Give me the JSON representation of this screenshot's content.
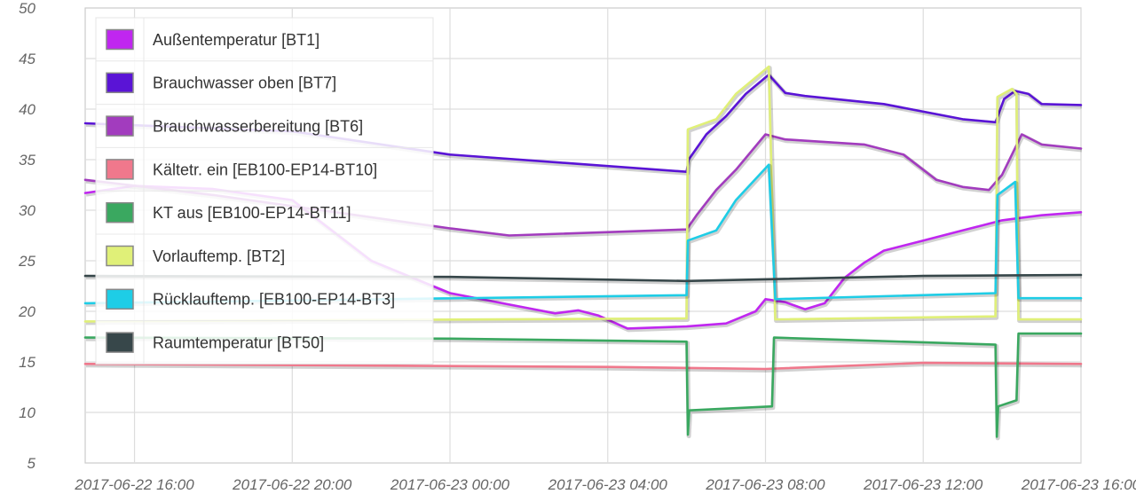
{
  "chart_data": {
    "type": "line",
    "title": "",
    "xlabel": "",
    "ylabel": "",
    "ylim": [
      5,
      50
    ],
    "xlim": [
      "2017-06-22 14:45",
      "2017-06-23 16:00"
    ],
    "grid": true,
    "legend_position": "top-left",
    "y_ticks": [
      "50",
      "45",
      "40",
      "35",
      "30",
      "25",
      "20",
      "15",
      "10",
      "5"
    ],
    "x_ticks": [
      "2017-06-22 16:00",
      "2017-06-22 20:00",
      "2017-06-23 00:00",
      "2017-06-23 04:00",
      "2017-06-23 08:00",
      "2017-06-23 12:00",
      "2017-06-23 16:00"
    ],
    "series": [
      {
        "name": "Außentemperatur [BT1]",
        "color": "#c026f0",
        "points": [
          [
            "2017-06-22 14:45",
            31.7
          ],
          [
            "2017-06-22 16:00",
            32.4
          ],
          [
            "2017-06-22 18:00",
            32.1
          ],
          [
            "2017-06-22 20:00",
            31.0
          ],
          [
            "2017-06-22 22:00",
            25.0
          ],
          [
            "2017-06-23 00:00",
            21.8
          ],
          [
            "2017-06-23 02:00",
            20.3
          ],
          [
            "2017-06-23 02:40",
            19.8
          ],
          [
            "2017-06-23 03:15",
            20.1
          ],
          [
            "2017-06-23 03:45",
            19.6
          ],
          [
            "2017-06-23 04:30",
            18.3
          ],
          [
            "2017-06-23 06:00",
            18.5
          ],
          [
            "2017-06-23 07:00",
            18.8
          ],
          [
            "2017-06-23 07:45",
            20.0
          ],
          [
            "2017-06-23 08:00",
            21.2
          ],
          [
            "2017-06-23 08:30",
            20.9
          ],
          [
            "2017-06-23 09:00",
            20.2
          ],
          [
            "2017-06-23 09:30",
            20.8
          ],
          [
            "2017-06-23 10:00",
            23.3
          ],
          [
            "2017-06-23 10:30",
            24.8
          ],
          [
            "2017-06-23 11:00",
            26.0
          ],
          [
            "2017-06-23 12:00",
            27.0
          ],
          [
            "2017-06-23 13:00",
            28.0
          ],
          [
            "2017-06-23 13:30",
            28.5
          ],
          [
            "2017-06-23 14:00",
            29.0
          ],
          [
            "2017-06-23 15:00",
            29.5
          ],
          [
            "2017-06-23 16:00",
            29.8
          ]
        ]
      },
      {
        "name": "Brauchwasser oben [BT7]",
        "color": "#5a14d6",
        "points": [
          [
            "2017-06-22 14:45",
            38.6
          ],
          [
            "2017-06-22 16:00",
            38.4
          ],
          [
            "2017-06-22 20:00",
            37.8
          ],
          [
            "2017-06-23 00:00",
            35.5
          ],
          [
            "2017-06-23 06:00",
            33.8
          ],
          [
            "2017-06-23 06:03",
            35.0
          ],
          [
            "2017-06-23 06:30",
            37.5
          ],
          [
            "2017-06-23 07:00",
            39.3
          ],
          [
            "2017-06-23 07:30",
            41.5
          ],
          [
            "2017-06-23 08:05",
            43.4
          ],
          [
            "2017-06-23 08:30",
            41.6
          ],
          [
            "2017-06-23 09:00",
            41.3
          ],
          [
            "2017-06-23 11:00",
            40.5
          ],
          [
            "2017-06-23 13:00",
            39.0
          ],
          [
            "2017-06-23 13:50",
            38.7
          ],
          [
            "2017-06-23 14:03",
            41.0
          ],
          [
            "2017-06-23 14:20",
            41.8
          ],
          [
            "2017-06-23 14:40",
            41.5
          ],
          [
            "2017-06-23 15:00",
            40.5
          ],
          [
            "2017-06-23 16:00",
            40.4
          ]
        ]
      },
      {
        "name": "Brauchwasserbereitung [BT6]",
        "color": "#a23cbe",
        "points": [
          [
            "2017-06-22 14:45",
            33.0
          ],
          [
            "2017-06-22 18:00",
            31.5
          ],
          [
            "2017-06-23 00:00",
            28.2
          ],
          [
            "2017-06-23 01:30",
            27.5
          ],
          [
            "2017-06-23 06:00",
            28.1
          ],
          [
            "2017-06-23 06:15",
            29.5
          ],
          [
            "2017-06-23 06:45",
            32.0
          ],
          [
            "2017-06-23 07:15",
            34.0
          ],
          [
            "2017-06-23 08:00",
            37.5
          ],
          [
            "2017-06-23 08:30",
            37.0
          ],
          [
            "2017-06-23 10:30",
            36.5
          ],
          [
            "2017-06-23 11:30",
            35.5
          ],
          [
            "2017-06-23 12:20",
            33.0
          ],
          [
            "2017-06-23 13:00",
            32.3
          ],
          [
            "2017-06-23 13:40",
            32.0
          ],
          [
            "2017-06-23 14:00",
            33.5
          ],
          [
            "2017-06-23 14:30",
            37.5
          ],
          [
            "2017-06-23 15:00",
            36.5
          ],
          [
            "2017-06-23 16:00",
            36.1
          ]
        ]
      },
      {
        "name": "Kältetr. ein [EB100-EP14-BT10]",
        "color": "#f0788c",
        "points": [
          [
            "2017-06-22 14:45",
            14.8
          ],
          [
            "2017-06-23 04:00",
            14.5
          ],
          [
            "2017-06-23 08:00",
            14.3
          ],
          [
            "2017-06-23 12:00",
            14.9
          ],
          [
            "2017-06-23 16:00",
            14.8
          ]
        ]
      },
      {
        "name": "KT aus [EB100-EP14-BT11]",
        "color": "#3aa860",
        "points": [
          [
            "2017-06-22 14:45",
            17.4
          ],
          [
            "2017-06-23 00:00",
            17.3
          ],
          [
            "2017-06-23 06:00",
            17.0
          ],
          [
            "2017-06-23 06:02",
            7.8
          ],
          [
            "2017-06-23 06:04",
            10.2
          ],
          [
            "2017-06-23 08:10",
            10.6
          ],
          [
            "2017-06-23 08:13",
            17.4
          ],
          [
            "2017-06-23 13:50",
            16.7
          ],
          [
            "2017-06-23 13:52",
            7.6
          ],
          [
            "2017-06-23 13:54",
            10.6
          ],
          [
            "2017-06-23 14:22",
            11.2
          ],
          [
            "2017-06-23 14:25",
            17.8
          ],
          [
            "2017-06-23 16:00",
            17.8
          ]
        ]
      },
      {
        "name": "Vorlauftemp. [BT2]",
        "color": "#e0f078",
        "points": [
          [
            "2017-06-22 14:45",
            19.0
          ],
          [
            "2017-06-23 06:00",
            19.3
          ],
          [
            "2017-06-23 06:02",
            38.0
          ],
          [
            "2017-06-23 06:45",
            39.0
          ],
          [
            "2017-06-23 07:15",
            41.5
          ],
          [
            "2017-06-23 08:05",
            44.2
          ],
          [
            "2017-06-23 08:15",
            19.2
          ],
          [
            "2017-06-23 13:50",
            19.5
          ],
          [
            "2017-06-23 13:53",
            41.2
          ],
          [
            "2017-06-23 14:15",
            42.0
          ],
          [
            "2017-06-23 14:22",
            41.5
          ],
          [
            "2017-06-23 14:25",
            19.2
          ],
          [
            "2017-06-23 16:00",
            19.2
          ]
        ]
      },
      {
        "name": "Rücklauftemp. [EB100-EP14-BT3]",
        "color": "#1ecde6",
        "points": [
          [
            "2017-06-22 14:45",
            20.8
          ],
          [
            "2017-06-23 06:00",
            21.6
          ],
          [
            "2017-06-23 06:02",
            27.0
          ],
          [
            "2017-06-23 06:45",
            28.0
          ],
          [
            "2017-06-23 07:15",
            31.0
          ],
          [
            "2017-06-23 08:05",
            34.5
          ],
          [
            "2017-06-23 08:15",
            21.2
          ],
          [
            "2017-06-23 13:50",
            21.8
          ],
          [
            "2017-06-23 13:53",
            31.5
          ],
          [
            "2017-06-23 14:20",
            32.8
          ],
          [
            "2017-06-23 14:25",
            21.3
          ],
          [
            "2017-06-23 16:00",
            21.3
          ]
        ]
      },
      {
        "name": "Raumtemperatur [BT50]",
        "color": "#37474a",
        "points": [
          [
            "2017-06-22 14:45",
            23.5
          ],
          [
            "2017-06-23 00:00",
            23.4
          ],
          [
            "2017-06-23 06:00",
            23.0
          ],
          [
            "2017-06-23 12:00",
            23.5
          ],
          [
            "2017-06-23 16:00",
            23.6
          ]
        ]
      }
    ]
  }
}
